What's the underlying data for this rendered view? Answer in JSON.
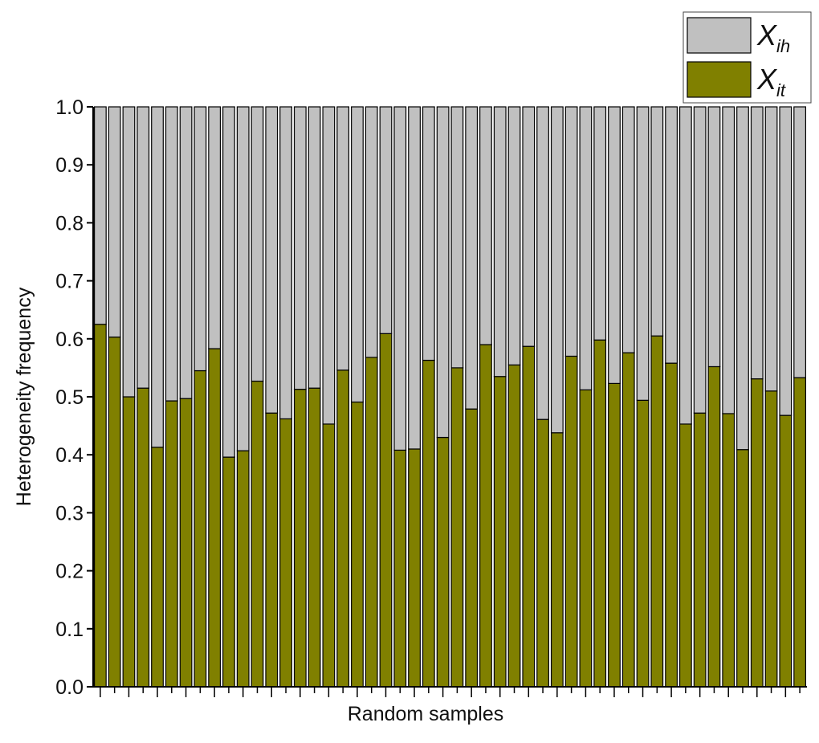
{
  "chart_data": {
    "type": "stacked_bar",
    "xlabel": "Random samples",
    "ylabel": "Heterogeneity frequency",
    "categories": [
      null,
      null,
      null,
      null,
      null,
      null,
      null,
      null,
      null,
      null,
      null,
      null,
      null,
      null,
      null,
      null,
      null,
      null,
      null,
      null,
      null,
      null,
      null,
      null,
      null,
      null,
      null,
      null,
      null,
      null,
      null,
      null,
      null,
      null,
      null,
      null,
      null,
      null,
      null,
      null,
      null,
      null,
      null,
      null,
      null,
      null,
      null,
      null,
      null,
      null
    ],
    "series": [
      {
        "name": "X",
        "name_sub": "it",
        "color": "#808000",
        "values": [
          0.625,
          0.603,
          0.5,
          0.515,
          0.413,
          0.493,
          0.497,
          0.545,
          0.583,
          0.396,
          0.407,
          0.527,
          0.472,
          0.462,
          0.513,
          0.515,
          0.453,
          0.546,
          0.491,
          0.568,
          0.609,
          0.408,
          0.41,
          0.563,
          0.43,
          0.55,
          0.479,
          0.59,
          0.535,
          0.555,
          0.587,
          0.461,
          0.438,
          0.57,
          0.512,
          0.598,
          0.523,
          0.576,
          0.494,
          0.605,
          0.558,
          0.453,
          0.472,
          0.552,
          0.471,
          0.409,
          0.531,
          0.51,
          0.468,
          0.533
        ]
      },
      {
        "name": "X",
        "name_sub": "ih",
        "color": "#c0c0c0",
        "values": [
          0.375,
          0.397,
          0.5,
          0.485,
          0.587,
          0.507,
          0.503,
          0.455,
          0.417,
          0.604,
          0.593,
          0.473,
          0.528,
          0.538,
          0.487,
          0.485,
          0.547,
          0.454,
          0.509,
          0.432,
          0.391,
          0.592,
          0.59,
          0.437,
          0.57,
          0.45,
          0.521,
          0.41,
          0.465,
          0.445,
          0.413,
          0.539,
          0.562,
          0.43,
          0.488,
          0.402,
          0.477,
          0.424,
          0.506,
          0.395,
          0.442,
          0.547,
          0.528,
          0.448,
          0.529,
          0.591,
          0.469,
          0.49,
          0.532,
          0.467
        ]
      }
    ],
    "ylim": [
      0,
      1
    ],
    "yticks": [
      {
        "value": 0,
        "label": "0.0"
      },
      0.1,
      0.2,
      0.3,
      0.4,
      0.5,
      0.6,
      0.7,
      0.8,
      0.9,
      {
        "value": 1,
        "label": "1.0"
      }
    ],
    "grid": false
  }
}
